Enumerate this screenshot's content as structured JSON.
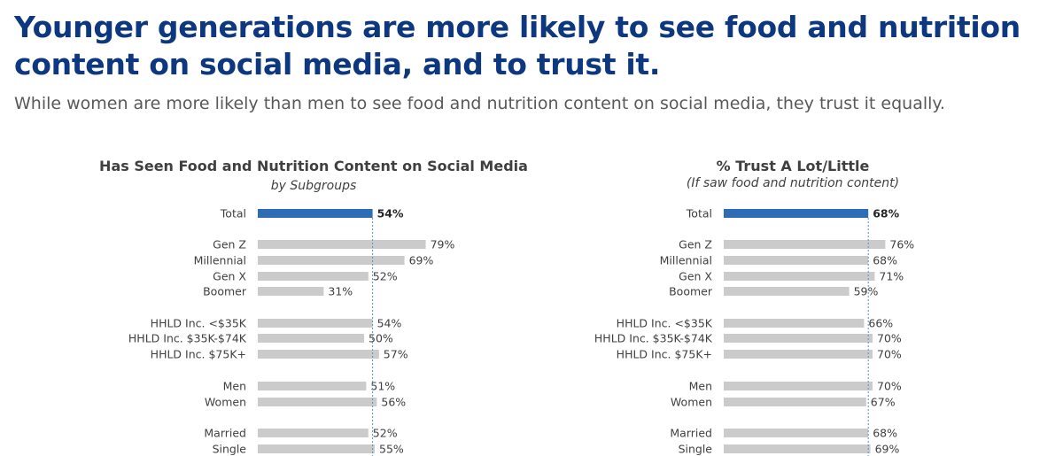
{
  "header": {
    "headline": "Younger generations are more likely to see food and nutrition content on social media, and to trust it.",
    "subhead": "While women are more likely than men to see food and nutrition content on social media, they trust it equally."
  },
  "colors": {
    "headline": "#0d3880",
    "total_bar": "#2e6cb5",
    "other_bar": "#cbcbcb",
    "reference_line": "#5b8fc7"
  },
  "chart_data": [
    {
      "type": "bar",
      "orientation": "horizontal",
      "title": "Has Seen Food and Nutrition Content on Social Media",
      "subtitle": "by Subgroups",
      "categories": [
        "Total",
        "Gen Z",
        "Millennial",
        "Gen X",
        "Boomer",
        "HHLD Inc. <$35K",
        "HHLD Inc. $35K-$74K",
        "HHLD Inc. $75K+",
        "Men",
        "Women",
        "Married",
        "Single"
      ],
      "groups": [
        [
          0
        ],
        [
          1,
          2,
          3,
          4
        ],
        [
          5,
          6,
          7
        ],
        [
          8,
          9
        ],
        [
          10,
          11
        ]
      ],
      "values": [
        54,
        79,
        69,
        52,
        31,
        54,
        50,
        57,
        51,
        56,
        52,
        55
      ],
      "value_labels": [
        "54%",
        "79%",
        "69%",
        "52%",
        "31%",
        "54%",
        "50%",
        "57%",
        "51%",
        "56%",
        "52%",
        "55%"
      ],
      "reference_line": 54,
      "xlim": [
        0,
        100
      ],
      "grid": false
    },
    {
      "type": "bar",
      "orientation": "horizontal",
      "title": "% Trust A Lot/Little",
      "subtitle": "(If saw food and nutrition content)",
      "categories": [
        "Total",
        "Gen Z",
        "Millennial",
        "Gen X",
        "Boomer",
        "HHLD Inc. <$35K",
        "HHLD Inc. $35K-$74K",
        "HHLD Inc. $75K+",
        "Men",
        "Women",
        "Married",
        "Single"
      ],
      "groups": [
        [
          0
        ],
        [
          1,
          2,
          3,
          4
        ],
        [
          5,
          6,
          7
        ],
        [
          8,
          9
        ],
        [
          10,
          11
        ]
      ],
      "values": [
        68,
        76,
        68,
        71,
        59,
        66,
        70,
        70,
        70,
        67,
        68,
        69
      ],
      "value_labels": [
        "68%",
        "76%",
        "68%",
        "71%",
        "59%",
        "66%",
        "70%",
        "70%",
        "70%",
        "67%",
        "68%",
        "69%"
      ],
      "reference_line": 68,
      "xlim": [
        0,
        100
      ],
      "grid": false
    }
  ]
}
